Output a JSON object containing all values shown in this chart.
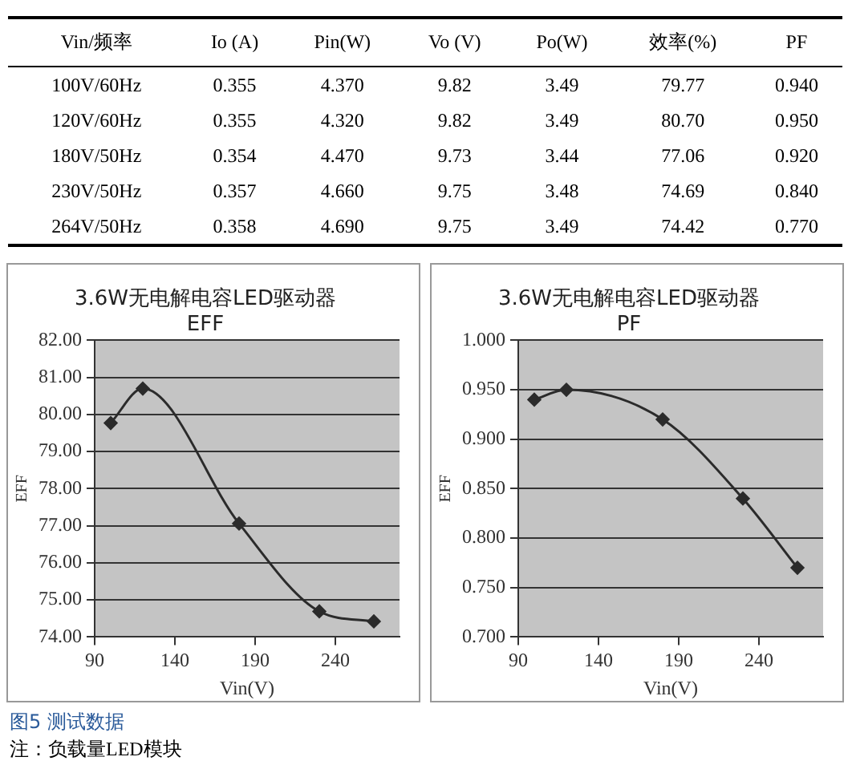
{
  "chart_data": [
    {
      "type": "other",
      "categories": [
        "Vin/频率",
        "Io (A)",
        "Pin(W)",
        "Vo (V)",
        "Po(W)",
        "效率(%)",
        "PF"
      ],
      "cell_labels": [
        [
          "100V/60Hz",
          "0.355",
          "4.370",
          "9.82",
          "3.49",
          "79.77",
          "0.940"
        ],
        [
          "120V/60Hz",
          "0.355",
          "4.320",
          "9.82",
          "3.49",
          "80.70",
          "0.950"
        ],
        [
          "180V/50Hz",
          "0.354",
          "4.470",
          "9.73",
          "3.44",
          "77.06",
          "0.920"
        ],
        [
          "230V/50Hz",
          "0.357",
          "4.660",
          "9.75",
          "3.48",
          "74.69",
          "0.840"
        ],
        [
          "264V/50Hz",
          "0.358",
          "4.690",
          "9.75",
          "3.49",
          "74.42",
          "0.770"
        ]
      ]
    },
    {
      "type": "line",
      "title": "3.6W无电解电容LED驱动器",
      "subtitle": "EFF",
      "xlabel": "Vin(V)",
      "ylabel": "EFF",
      "x": [
        100,
        120,
        180,
        230,
        264
      ],
      "series": [
        {
          "color": "#2b2b2b",
          "values": [
            79.77,
            80.7,
            77.06,
            74.69,
            74.42
          ]
        }
      ],
      "xlim": [
        90,
        280
      ],
      "xticks": [
        90,
        140,
        190,
        240
      ],
      "ylim": [
        74,
        82
      ],
      "yticks": [
        {
          "value": 74,
          "label": "74.00"
        },
        {
          "value": 75,
          "label": "75.00"
        },
        {
          "value": 76,
          "label": "76.00"
        },
        {
          "value": 77,
          "label": "77.00"
        },
        {
          "value": 78,
          "label": "78.00"
        },
        {
          "value": 79,
          "label": "79.00"
        },
        {
          "value": 80,
          "label": "80.00"
        },
        {
          "value": 81,
          "label": "81.00"
        },
        {
          "value": 82,
          "label": "82.00"
        }
      ],
      "grid": "y",
      "legend": false,
      "marker": "diamond"
    },
    {
      "type": "line",
      "title": "3.6W无电解电容LED驱动器",
      "subtitle": "PF",
      "xlabel": "Vin(V)",
      "ylabel": "EFF",
      "x": [
        100,
        120,
        180,
        230,
        264
      ],
      "series": [
        {
          "color": "#2b2b2b",
          "values": [
            0.94,
            0.95,
            0.92,
            0.84,
            0.77
          ]
        }
      ],
      "xlim": [
        90,
        280
      ],
      "xticks": [
        90,
        140,
        190,
        240
      ],
      "ylim": [
        0.7,
        1
      ],
      "yticks": [
        {
          "value": 0.7,
          "label": "0.700"
        },
        {
          "value": 0.75,
          "label": "0.750"
        },
        {
          "value": 0.8,
          "label": "0.800"
        },
        {
          "value": 0.85,
          "label": "0.850"
        },
        {
          "value": 0.9,
          "label": "0.900"
        },
        {
          "value": 0.95,
          "label": "0.950"
        },
        {
          "value": 1,
          "label": "1.000"
        }
      ],
      "grid": "y",
      "legend": false,
      "marker": "diamond",
      "annotations": [
        "图5 测试数据",
        "注：负载量LED模块"
      ]
    }
  ]
}
